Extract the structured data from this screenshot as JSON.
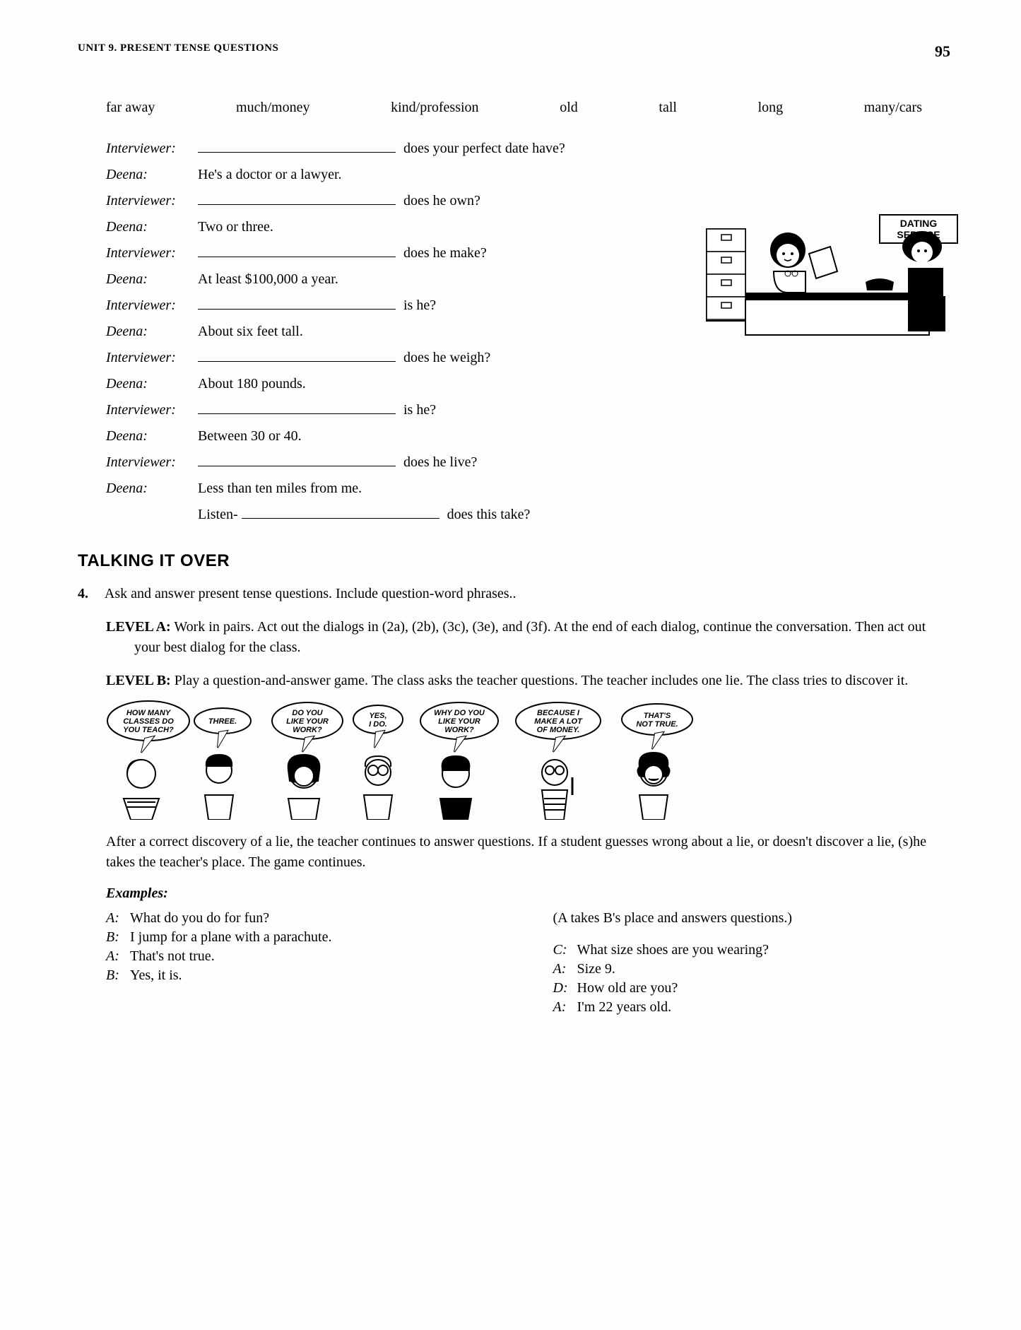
{
  "header": {
    "unit": "UNIT 9. PRESENT TENSE QUESTIONS",
    "page_number": "95"
  },
  "wordbank": [
    "far away",
    "much/money",
    "kind/profession",
    "old",
    "tall",
    "long",
    "many/cars"
  ],
  "dialog": [
    {
      "speaker": "Interviewer:",
      "blank": true,
      "tail": " does your perfect date have?"
    },
    {
      "speaker": "Deena:",
      "blank": false,
      "text": "He's a doctor or a lawyer."
    },
    {
      "speaker": "Interviewer:",
      "blank": true,
      "tail": " does he own?"
    },
    {
      "speaker": "Deena:",
      "blank": false,
      "text": "Two or three."
    },
    {
      "speaker": "Interviewer:",
      "blank": true,
      "tail": " does he make?"
    },
    {
      "speaker": "Deena:",
      "blank": false,
      "text": "At least $100,000 a year."
    },
    {
      "speaker": "Interviewer:",
      "blank": true,
      "tail": " is he?"
    },
    {
      "speaker": "Deena:",
      "blank": false,
      "text": "About six feet tall."
    },
    {
      "speaker": "Interviewer:",
      "blank": true,
      "tail": " does he weigh?"
    },
    {
      "speaker": "Deena:",
      "blank": false,
      "text": "About 180 pounds."
    },
    {
      "speaker": "Interviewer:",
      "blank": true,
      "tail": " is he?"
    },
    {
      "speaker": "Deena:",
      "blank": false,
      "text": "Between 30 or 40."
    },
    {
      "speaker": "Interviewer:",
      "blank": true,
      "tail": " does he live?"
    },
    {
      "speaker": "Deena:",
      "blank": false,
      "text": "Less than ten miles from me."
    },
    {
      "speaker": "",
      "blank": true,
      "prefix": "Listen- ",
      "tail": " does this take?"
    }
  ],
  "dating_sign": "DATING SERVICE",
  "section": {
    "title": "TALKING IT OVER",
    "q4": {
      "num": "4.",
      "text": "Ask and answer present tense questions. Include question-word phrases.."
    },
    "levelA": {
      "label": "LEVEL A:",
      "text": " Work in pairs. Act out the dialogs in (2a), (2b), (3c), (3e), and (3f). At the end of each dialog, continue the conversation. Then act out your best dialog for the class."
    },
    "levelB": {
      "label": "LEVEL B:",
      "text": " Play a question-and-answer game. The class asks the teacher questions. The teacher includes one lie. The class tries to discover it."
    },
    "comic_bubbles": [
      "HOW MANY CLASSES DO YOU TEACH?",
      "THREE.",
      "DO YOU LIKE YOUR WORK?",
      "YES, I DO.",
      "WHY DO YOU LIKE YOUR WORK?",
      "BECAUSE I MAKE A LOT OF MONEY.",
      "THAT'S NOT TRUE."
    ],
    "after_comic": "After a correct discovery of a lie, the teacher continues to answer questions. If a student guesses wrong about a lie, or doesn't discover a lie, (s)he takes the teacher's place. The game continues.",
    "examples_label": "Examples:",
    "examples_left": [
      {
        "sp": "A:",
        "t": "What do you do for fun?"
      },
      {
        "sp": "B:",
        "t": "I jump for a plane with a parachute."
      },
      {
        "sp": "A:",
        "t": "That's not true."
      },
      {
        "sp": "B:",
        "t": "Yes, it is."
      }
    ],
    "examples_right_aside": "(A takes B's place and answers questions.)",
    "examples_right": [
      {
        "sp": "C:",
        "t": "What size shoes are you wearing?"
      },
      {
        "sp": "A:",
        "t": "Size 9."
      },
      {
        "sp": "D:",
        "t": "How old are you?"
      },
      {
        "sp": "A:",
        "t": "I'm 22 years old."
      }
    ]
  }
}
